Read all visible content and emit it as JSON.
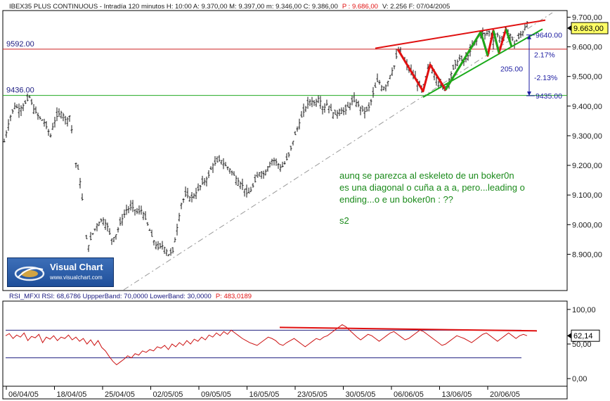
{
  "header": {
    "main_title": "IBEX35 PLUS CONTINUOUS - Intradía 120 minutos  H: 10:00  A: 9.370,00  M: 9.397,00  m: 9.346,00  C: 9.386,00",
    "main_p": "P : 9.686,00",
    "main_tail": "V: 2.256  F: 07/04/2005",
    "rsi_title": "RSI_MFXI  RSI: 68,6786  UppperBand: 70,0000  LowerBand: 30,0000",
    "rsi_p": "P: 483,0189"
  },
  "logo": {
    "title": "Visual Chart",
    "url": "www.visualchart.com"
  },
  "colors": {
    "candle": "#1a1a1a",
    "red_line": "#e01010",
    "green_line": "#1aaa1a",
    "h_red": "#cc2020",
    "h_green": "#22aa22",
    "rsi_line": "#cc1111",
    "band": "#202080",
    "annotation": "#1a8a1a",
    "blue": "#1a1aa0"
  },
  "chart_data": [
    {
      "type": "candlestick",
      "title": "IBEX35 PLUS CONTINUOUS - Intradía 120 minutos",
      "ylim": [
        8780,
        9720
      ],
      "yticks": [
        "9.700,00",
        "9.600,00",
        "9.500,00",
        "9.400,00",
        "9.300,00",
        "9.200,00",
        "9.100,00",
        "9.000,00",
        "8.900,00"
      ],
      "ytick_values": [
        9700,
        9600,
        9500,
        9400,
        9300,
        9200,
        9100,
        9000,
        8900
      ],
      "xticks": [
        "06/04/05",
        "18/04/05",
        "25/04/05",
        "02/05/05",
        "09/05/05",
        "16/05/05",
        "23/05/05",
        "30/05/05",
        "06/06/05",
        "13/06/05",
        "20/06/05"
      ],
      "close_path": [
        [
          0,
          9280
        ],
        [
          8,
          9360
        ],
        [
          15,
          9400
        ],
        [
          22,
          9390
        ],
        [
          30,
          9410
        ],
        [
          36,
          9430
        ],
        [
          42,
          9390
        ],
        [
          50,
          9360
        ],
        [
          56,
          9350
        ],
        [
          62,
          9320
        ],
        [
          66,
          9300
        ],
        [
          70,
          9340
        ],
        [
          76,
          9370
        ],
        [
          82,
          9380
        ],
        [
          88,
          9350
        ],
        [
          94,
          9370
        ],
        [
          100,
          9220
        ],
        [
          106,
          9180
        ],
        [
          110,
          9110
        ],
        [
          116,
          8960
        ],
        [
          120,
          8930
        ],
        [
          126,
          8970
        ],
        [
          132,
          9000
        ],
        [
          140,
          9020
        ],
        [
          148,
          8990
        ],
        [
          152,
          8950
        ],
        [
          158,
          8960
        ],
        [
          166,
          9010
        ],
        [
          174,
          9050
        ],
        [
          182,
          9060
        ],
        [
          190,
          9040
        ],
        [
          196,
          9050
        ],
        [
          204,
          9000
        ],
        [
          210,
          8960
        ],
        [
          218,
          8920
        ],
        [
          226,
          8930
        ],
        [
          234,
          8900
        ],
        [
          240,
          8910
        ],
        [
          246,
          8990
        ],
        [
          252,
          9070
        ],
        [
          258,
          9100
        ],
        [
          266,
          9090
        ],
        [
          274,
          9110
        ],
        [
          282,
          9140
        ],
        [
          290,
          9160
        ],
        [
          296,
          9200
        ],
        [
          302,
          9210
        ],
        [
          308,
          9220
        ],
        [
          314,
          9200
        ],
        [
          320,
          9190
        ],
        [
          326,
          9170
        ],
        [
          332,
          9150
        ],
        [
          340,
          9130
        ],
        [
          346,
          9100
        ],
        [
          352,
          9120
        ],
        [
          358,
          9150
        ],
        [
          364,
          9180
        ],
        [
          370,
          9170
        ],
        [
          376,
          9200
        ],
        [
          382,
          9220
        ],
        [
          388,
          9210
        ],
        [
          394,
          9190
        ],
        [
          400,
          9210
        ],
        [
          406,
          9240
        ],
        [
          412,
          9290
        ],
        [
          418,
          9330
        ],
        [
          424,
          9370
        ],
        [
          430,
          9400
        ],
        [
          436,
          9420
        ],
        [
          442,
          9410
        ],
        [
          448,
          9430
        ],
        [
          454,
          9390
        ],
        [
          460,
          9410
        ],
        [
          466,
          9380
        ],
        [
          472,
          9370
        ],
        [
          478,
          9390
        ],
        [
          484,
          9380
        ],
        [
          490,
          9400
        ],
        [
          496,
          9420
        ],
        [
          502,
          9410
        ],
        [
          508,
          9390
        ],
        [
          514,
          9380
        ],
        [
          520,
          9400
        ],
        [
          526,
          9450
        ],
        [
          532,
          9490
        ],
        [
          538,
          9460
        ],
        [
          544,
          9470
        ],
        [
          550,
          9510
        ],
        [
          556,
          9540
        ],
        [
          560,
          9592
        ],
        [
          566,
          9570
        ],
        [
          572,
          9540
        ],
        [
          578,
          9520
        ],
        [
          584,
          9500
        ],
        [
          590,
          9470
        ],
        [
          596,
          9450
        ],
        [
          602,
          9510
        ],
        [
          606,
          9540
        ],
        [
          612,
          9510
        ],
        [
          618,
          9480
        ],
        [
          624,
          9460
        ],
        [
          630,
          9470
        ],
        [
          636,
          9510
        ],
        [
          642,
          9540
        ],
        [
          648,
          9560
        ],
        [
          654,
          9550
        ],
        [
          660,
          9570
        ],
        [
          666,
          9600
        ],
        [
          672,
          9620
        ],
        [
          678,
          9650
        ],
        [
          684,
          9640
        ],
        [
          690,
          9650
        ],
        [
          696,
          9620
        ],
        [
          702,
          9640
        ],
        [
          708,
          9620
        ],
        [
          714,
          9650
        ],
        [
          720,
          9640
        ],
        [
          726,
          9610
        ],
        [
          732,
          9630
        ],
        [
          738,
          9650
        ],
        [
          744,
          9683
        ]
      ],
      "levels": [
        {
          "label": "9592.00",
          "value": 9592,
          "color": "red"
        },
        {
          "label": "9436.00",
          "value": 9436,
          "color": "green"
        }
      ],
      "last_price": "9.663,00",
      "measure": {
        "top": "9640.00",
        "bottom": "9435.00",
        "up_pct": "2.17%",
        "diff": "205.00",
        "down_pct": "-2.13%"
      },
      "annotation": {
        "lines": [
          "aunq se parezca al eskeleto de un boker0n",
          "es una diagonal o cuña a a a, pero...leading o",
          "ending...o e un boker0n : ??"
        ],
        "signature": "s2"
      },
      "wave_red": [
        [
          560,
          9592
        ],
        [
          596,
          9450
        ],
        [
          606,
          9540
        ],
        [
          628,
          9455
        ],
        [
          678,
          9650
        ],
        [
          688,
          9570
        ],
        [
          696,
          9655
        ],
        [
          704,
          9580
        ],
        [
          714,
          9660
        ],
        [
          722,
          9600
        ]
      ],
      "wave_green": [
        [
          628,
          9455
        ],
        [
          678,
          9650
        ],
        [
          688,
          9570
        ],
        [
          696,
          9655
        ],
        [
          704,
          9580
        ],
        [
          714,
          9660
        ],
        [
          722,
          9600
        ],
        [
          744,
          9680
        ]
      ],
      "trend_upper": [
        [
          528,
          9595
        ],
        [
          770,
          9690
        ]
      ],
      "trend_lower": [
        [
          596,
          9430
        ],
        [
          766,
          9660
        ]
      ],
      "dashed_support": [
        [
          170,
          8780
        ],
        [
          780,
          9715
        ]
      ]
    },
    {
      "type": "line",
      "title": "RSI_MFXI",
      "ylim": [
        -10,
        110
      ],
      "yticks": [
        "100,00",
        "50,00",
        "0,00"
      ],
      "ytick_values": [
        100,
        50,
        0
      ],
      "bands": [
        70,
        30
      ],
      "last_value": "62,14",
      "series": [
        {
          "name": "RSI",
          "values": [
            62,
            65,
            58,
            63,
            60,
            66,
            55,
            61,
            59,
            64,
            52,
            60,
            57,
            62,
            55,
            60,
            58,
            63,
            56,
            60,
            54,
            58,
            50,
            56,
            48,
            55,
            45,
            40,
            32,
            25,
            20,
            24,
            28,
            33,
            30,
            36,
            34,
            40,
            38,
            42,
            40,
            46,
            44,
            48,
            42,
            50,
            46,
            52,
            48,
            55,
            50,
            57,
            54,
            60,
            56,
            63,
            60,
            66,
            62,
            68,
            64,
            70,
            66,
            62,
            58,
            55,
            52,
            50,
            48,
            52,
            56,
            60,
            58,
            55,
            50,
            48,
            52,
            55,
            58,
            54,
            50,
            46,
            50,
            54,
            58,
            56,
            60,
            62,
            66,
            70,
            74,
            78,
            75,
            70,
            65,
            60,
            56,
            60,
            64,
            62,
            58,
            54,
            58,
            62,
            66,
            68,
            64,
            60,
            56,
            58,
            62,
            66,
            70,
            68,
            64,
            60,
            56,
            52,
            48,
            50,
            54,
            58,
            62,
            60,
            58,
            55,
            52,
            56,
            60,
            64,
            66,
            62,
            58,
            54,
            58,
            62,
            66,
            62,
            58,
            62,
            64,
            62
          ]
        }
      ],
      "divergence": [
        [
          398,
          74
        ],
        [
          764,
          69
        ]
      ]
    }
  ]
}
